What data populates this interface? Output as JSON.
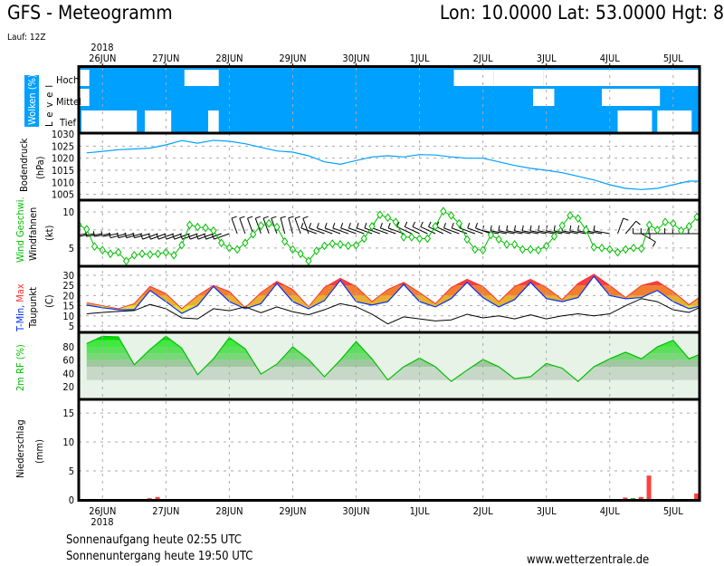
{
  "header": {
    "title": "GFS - Meteogramm",
    "location": "Lon: 10.0000 Lat: 53.0000 Hgt: 8",
    "run": "Lauf: 12Z"
  },
  "footer": {
    "sunrise": "Sonnenaufgang heute 02:55 UTC",
    "sunset": "Sonnenuntergang heute 19:50 UTC",
    "site": "www.wetterzentrale.de"
  },
  "chart_data": {
    "type": "meteogram",
    "year_label": "2018",
    "x_range": [
      "2018-06-25T15",
      "2018-07-05T10"
    ],
    "day_ticks": [
      {
        "date": "2018-06-26T00",
        "label": "26JUN"
      },
      {
        "date": "2018-06-27T00",
        "label": "27JUN"
      },
      {
        "date": "2018-06-28T00",
        "label": "28JUN"
      },
      {
        "date": "2018-06-29T00",
        "label": "29JUN"
      },
      {
        "date": "2018-06-30T00",
        "label": "30JUN"
      },
      {
        "date": "2018-07-01T00",
        "label": "1JUL"
      },
      {
        "date": "2018-07-02T00",
        "label": "2JUL"
      },
      {
        "date": "2018-07-03T00",
        "label": "3JUL"
      },
      {
        "date": "2018-07-04T00",
        "label": "4JUL"
      },
      {
        "date": "2018-07-05T00",
        "label": "5JUL"
      }
    ],
    "colors": {
      "cloud": "#00a0ff",
      "pressure": "#00a0ff",
      "wind": "#00c000",
      "tmin": "#0030ff",
      "tmax": "#ff3030",
      "dewpoint": "#000000",
      "rh": "#00c000",
      "precip": "#ff4040",
      "precip_conv": "#00c000"
    },
    "clouds": {
      "label_main": "Wolken (%)",
      "label_level": "Level",
      "levels": [
        "Hoch",
        "Mittel",
        "Tief"
      ],
      "clear_intervals": [
        {
          "level": "Hoch",
          "from": "2018-06-25T15",
          "to": "2018-06-25T19"
        },
        {
          "level": "Hoch",
          "from": "2018-06-27T07",
          "to": "2018-06-27T20"
        },
        {
          "level": "Hoch",
          "from": "2018-07-01T13",
          "to": "2018-07-02T04"
        },
        {
          "level": "Hoch",
          "from": "2018-07-02T04",
          "to": "2018-07-02T23"
        },
        {
          "level": "Hoch",
          "from": "2018-07-02T23",
          "to": "2018-07-05T10"
        },
        {
          "level": "Mittel",
          "from": "2018-06-25T15",
          "to": "2018-06-25T19"
        },
        {
          "level": "Mittel",
          "from": "2018-07-02T19",
          "to": "2018-07-03T03"
        },
        {
          "level": "Mittel",
          "from": "2018-07-03T21",
          "to": "2018-07-04T19"
        },
        {
          "level": "Tief",
          "from": "2018-06-25T16",
          "to": "2018-06-26T13"
        },
        {
          "level": "Tief",
          "from": "2018-06-26T16",
          "to": "2018-06-27T02"
        },
        {
          "level": "Tief",
          "from": "2018-06-27T16",
          "to": "2018-06-27T20"
        },
        {
          "level": "Tief",
          "from": "2018-07-04T03",
          "to": "2018-07-04T16"
        },
        {
          "level": "Tief",
          "from": "2018-07-04T18",
          "to": "2018-07-05T07"
        }
      ]
    },
    "pressure": {
      "label": "Bodendruck",
      "unit": "(hPa)",
      "ylim": [
        1003,
        1030
      ],
      "ticks": [
        1005,
        1010,
        1015,
        1020,
        1025,
        1030
      ],
      "start": "2018-06-25T18",
      "step_hours": 6,
      "values": [
        1022.2,
        1022.8,
        1023.5,
        1023.8,
        1024.2,
        1025.5,
        1027.3,
        1026.2,
        1027.4,
        1027,
        1026,
        1024.5,
        1023,
        1022.5,
        1021,
        1018.5,
        1017.5,
        1019,
        1020.5,
        1021,
        1020.5,
        1021.5,
        1021.3,
        1020.5,
        1020,
        1020,
        1018.5,
        1017,
        1015.8,
        1015,
        1014,
        1012.5,
        1011,
        1009,
        1007.5,
        1007,
        1007.5,
        1009,
        1010.5,
        1010.5
      ]
    },
    "wind": {
      "label_speed": "Wind Geschwi.",
      "label_barbs": "Windfahnen",
      "unit": "(kt)",
      "ylim": [
        2.6,
        11.5
      ],
      "ticks": [
        5,
        10
      ],
      "grid": [
        5,
        7.5,
        10
      ],
      "start": "2018-06-25T15",
      "step_hours": 3,
      "speed": [
        8.2,
        7.6,
        5.2,
        4.7,
        4.2,
        4.4,
        3.2,
        4,
        4.2,
        4.1,
        4.2,
        4.4,
        4,
        5.4,
        8.2,
        7.9,
        7.8,
        7.4,
        5.7,
        5,
        4.8,
        5.7,
        6.9,
        8.1,
        8.4,
        7.9,
        5.9,
        4.8,
        4.2,
        3.2,
        4.6,
        5.3,
        5.6,
        5.5,
        5.3,
        5.4,
        6.3,
        8.0,
        9.6,
        9.2,
        8.6,
        6.5,
        6.5,
        6.3,
        6.3,
        8.0,
        10.1,
        9.5,
        8.4,
        6.2,
        4.8,
        4.7,
        6.8,
        6.2,
        5.5,
        5.5,
        4.8,
        4.8,
        4.7,
        5.3,
        6.6,
        8.1,
        9.5,
        9.1,
        7.5,
        5.1,
        5.0,
        4.8,
        4.4,
        4.8,
        5,
        4.9,
        8.2,
        7.5,
        8.6,
        8.4,
        7.4,
        8.0,
        9.3,
        11.3
      ],
      "direction_deg": [
        260,
        260,
        260,
        260,
        260,
        260,
        255,
        255,
        255,
        255,
        250,
        250,
        250,
        250,
        250,
        250,
        250,
        250,
        250,
        250,
        340,
        340,
        340,
        340,
        340,
        340,
        345,
        345,
        340,
        340,
        290,
        290,
        290,
        290,
        290,
        290,
        290,
        290,
        290,
        290,
        290,
        290,
        295,
        295,
        295,
        295,
        295,
        295,
        290,
        290,
        290,
        290,
        290,
        280,
        280,
        280,
        280,
        280,
        280,
        280,
        280,
        280,
        280,
        280,
        280,
        280,
        280,
        280,
        20,
        40,
        90,
        120,
        270,
        270,
        270,
        270,
        270,
        270,
        270,
        270
      ]
    },
    "temperature": {
      "label_tmin": "T-Min,",
      "label_tmax": "Max",
      "label_dew": "Taupunkt",
      "unit": "(C)",
      "ylim": [
        2.3,
        34
      ],
      "ticks": [
        5,
        10,
        15,
        20,
        25,
        30
      ],
      "start": "2018-06-25T18",
      "step_hours": 6,
      "tmin": [
        15.3,
        14,
        13,
        13,
        22.5,
        17,
        11.2,
        15,
        24.5,
        17,
        13.5,
        16,
        26,
        17,
        13.5,
        17.5,
        27.5,
        17,
        15.3,
        17,
        25.5,
        17,
        14.4,
        18.5,
        26.5,
        19,
        14.4,
        18,
        26.5,
        18.5,
        17,
        19,
        29.5,
        20,
        18.4,
        19,
        22.5,
        17,
        13.5,
        15.3
      ],
      "tmax": [
        16.5,
        15,
        13.5,
        16,
        24.5,
        21,
        13.5,
        20,
        25,
        22,
        14,
        21.5,
        27,
        23,
        14.5,
        24,
        28.5,
        24.5,
        17,
        23,
        26.5,
        21.5,
        16,
        24,
        28,
        24.5,
        17,
        24.5,
        28,
        24,
        18,
        26,
        30.5,
        25,
        19,
        25,
        27,
        22,
        15.5,
        21
      ],
      "dewpoint": [
        11,
        11.7,
        12.2,
        12.6,
        15.6,
        13.5,
        9,
        8.5,
        13.5,
        12.5,
        14.4,
        11.5,
        14.4,
        12,
        10.5,
        13,
        16,
        14.5,
        10.8,
        6,
        9.5,
        8.5,
        7.5,
        8,
        10.8,
        9,
        10,
        8.5,
        10.5,
        8.5,
        10,
        11,
        10,
        11,
        15,
        18.5,
        17,
        13,
        11.7,
        15.3
      ]
    },
    "humidity": {
      "label": "2m RF (%)",
      "ylim": [
        2.3,
        100.5
      ],
      "ticks": [
        20,
        40,
        60,
        80
      ],
      "start": "2018-06-25T18",
      "step_hours": 6,
      "values": [
        85,
        96,
        95,
        53,
        76,
        96,
        78,
        38,
        62,
        94,
        77,
        39,
        54,
        80,
        61,
        35,
        60,
        88,
        62,
        30,
        50,
        63,
        50,
        28,
        45,
        61,
        50,
        32,
        35,
        55,
        48,
        28,
        50,
        62,
        72,
        62,
        80,
        90,
        62,
        72
      ]
    },
    "precipitation": {
      "label": "Niederschlag",
      "unit": "(mm)",
      "ylim": [
        0,
        17.2
      ],
      "ticks": [
        0,
        5,
        10,
        15
      ],
      "bars": [
        {
          "time": "2018-06-26T18",
          "value": 0.3,
          "kind": "total"
        },
        {
          "time": "2018-06-26T21",
          "value": 0.5,
          "kind": "total"
        },
        {
          "time": "2018-07-04T06",
          "value": 0.4,
          "kind": "total"
        },
        {
          "time": "2018-07-04T09",
          "value": 0.3,
          "kind": "convective"
        },
        {
          "time": "2018-07-04T12",
          "value": 0.5,
          "kind": "total"
        },
        {
          "time": "2018-07-04T15",
          "value": 4.2,
          "kind": "total"
        },
        {
          "time": "2018-07-05T00",
          "value": 0.2,
          "kind": "convective"
        },
        {
          "time": "2018-07-05T09",
          "value": 1.1,
          "kind": "total"
        }
      ]
    }
  }
}
